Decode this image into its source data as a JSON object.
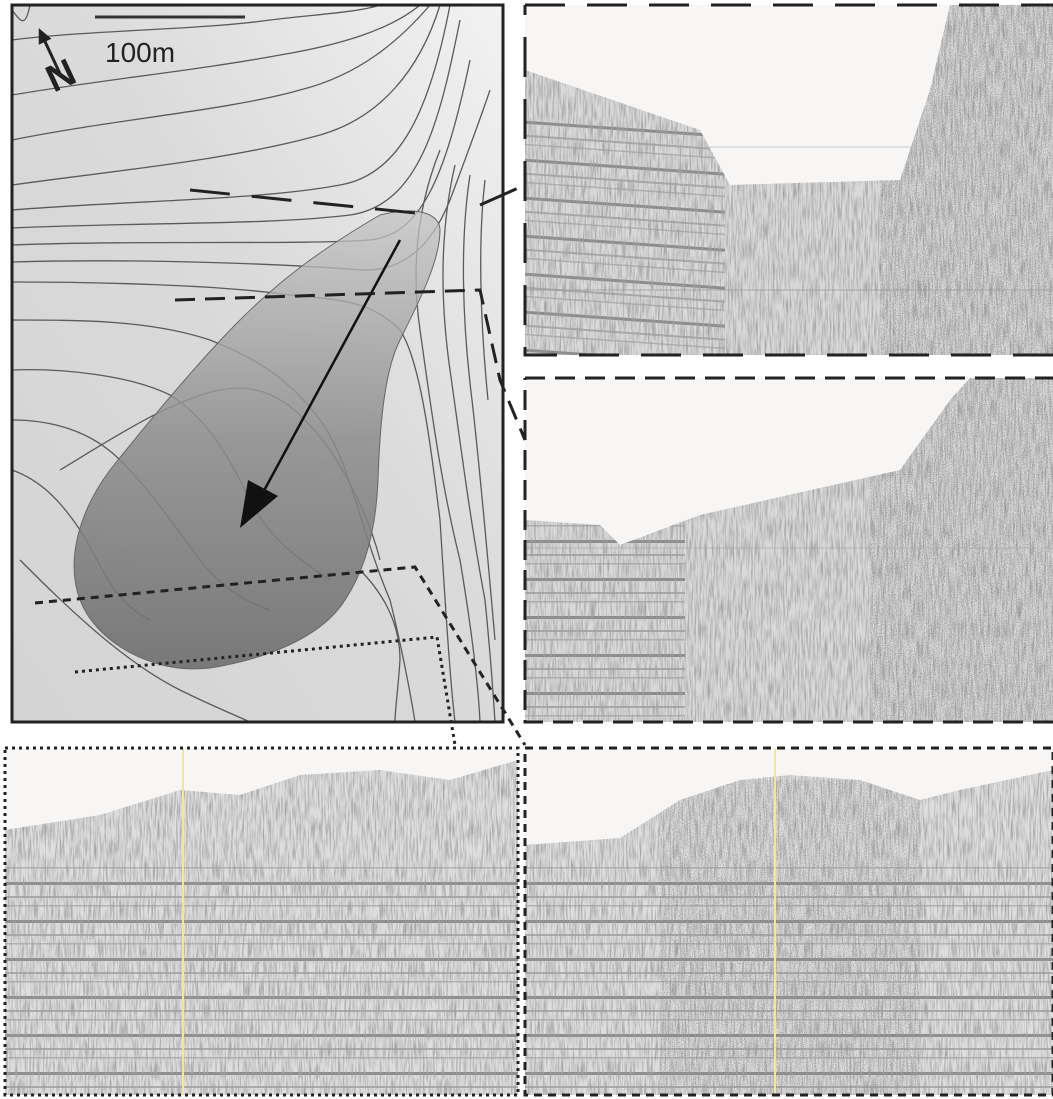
{
  "map": {
    "scale_label": "100m",
    "north_label": "N"
  }
}
